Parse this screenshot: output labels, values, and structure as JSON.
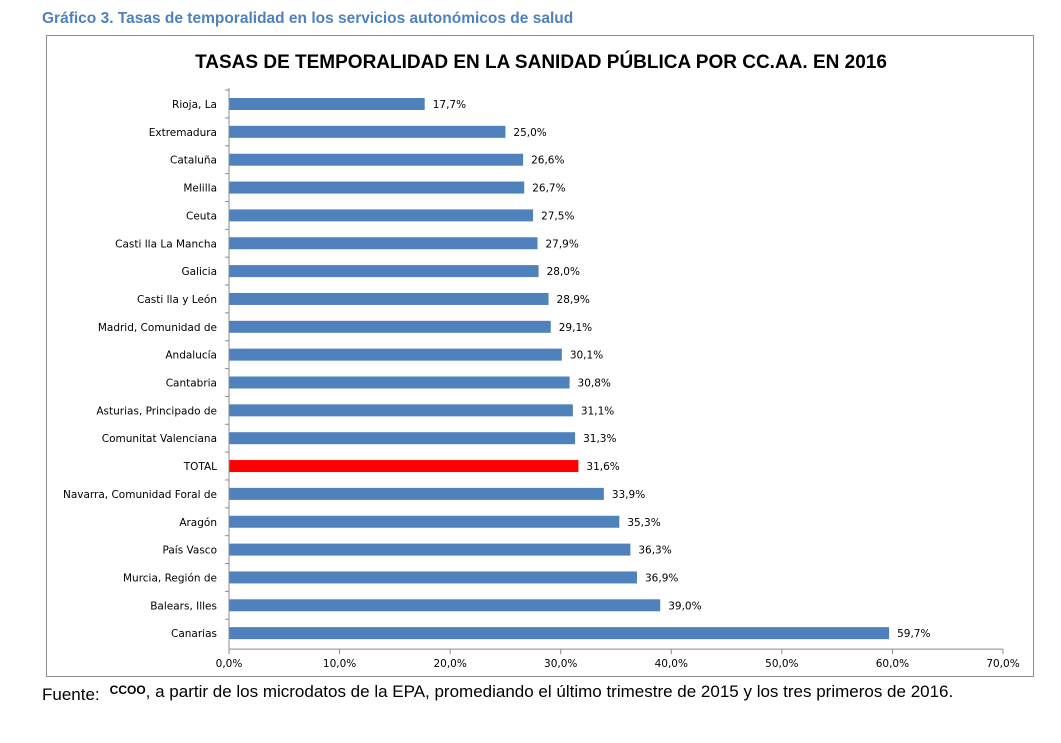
{
  "caption": "Gráfico 3. Tasas de temporalidad en los servicios autonómicos de salud",
  "source": {
    "prefix": "Fuente:",
    "org": "CCOO",
    "text": ", a partir de los microdatos de la EPA, promediando el último trimestre de 2015 y los tres primeros de 2016."
  },
  "colors": {
    "bar": "#4f81bd",
    "highlight": "#ff0000",
    "axis": "#8c8c8c"
  },
  "chart_data": {
    "type": "bar",
    "orientation": "horizontal",
    "title": "TASAS DE TEMPORALIDAD EN LA SANIDAD PÚBLICA POR CC.AA. EN 2016",
    "xlabel": "",
    "ylabel": "",
    "xlim": [
      0,
      70
    ],
    "grid": false,
    "highlight_category": "TOTAL",
    "categories": [
      "Rioja, La",
      "Extremadura",
      "Cataluña",
      "Melilla",
      "Ceuta",
      "Casti  lla La Mancha",
      "Galicia",
      "Casti  lla y León",
      "Madrid, Comunidad de",
      "Andalucía",
      "Cantabria",
      "Asturias, Principado de",
      "Comunitat Valenciana",
      "TOTAL",
      "Navarra, Comunidad Foral de",
      "Aragón",
      "País Vasco",
      "Murcia, Región de",
      "Balears, Illes",
      "Canarias"
    ],
    "values": [
      17.7,
      25.0,
      26.6,
      26.7,
      27.5,
      27.9,
      28.0,
      28.9,
      29.1,
      30.1,
      30.8,
      31.1,
      31.3,
      31.6,
      33.9,
      35.3,
      36.3,
      36.9,
      39.0,
      59.7
    ],
    "value_labels": [
      "17,7%",
      "25,0%",
      "26,6%",
      "26,7%",
      "27,5%",
      "27,9%",
      "28,0%",
      "28,9%",
      "29,1%",
      "30,1%",
      "30,8%",
      "31,1%",
      "31,3%",
      "31,6%",
      "33,9%",
      "35,3%",
      "36,3%",
      "36,9%",
      "39,0%",
      "59,7%"
    ],
    "ticks": [
      0,
      10,
      20,
      30,
      40,
      50,
      60,
      70
    ],
    "tick_labels": [
      "0,0%",
      "10,0%",
      "20,0%",
      "30,0%",
      "40,0%",
      "50,0%",
      "60,0%",
      "70,0%"
    ]
  }
}
